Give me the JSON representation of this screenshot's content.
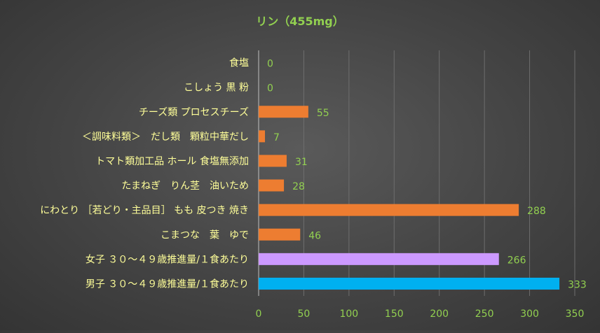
{
  "chart_data": {
    "type": "bar",
    "orientation": "horizontal",
    "title": "リン（455mg）",
    "categories": [
      "食塩",
      "こしょう 黒 粉",
      "チーズ類 プロセスチーズ",
      "＜調味料類＞　だし類　顆粒中華だし",
      "トマト類加工品 ホール 食塩無添加",
      "たまねぎ　りん茎　油いため",
      "にわとり ［若どり・主品目］ もも 皮つき 焼き",
      "こまつな　葉　ゆで",
      "女子 ３０～４９歳推進量/１食あたり",
      "男子 ３０～４９歳推進量/１食あたり"
    ],
    "values": [
      0,
      0,
      55,
      7,
      31,
      28,
      288,
      46,
      266,
      333
    ],
    "bar_colors": [
      "#ed7d31",
      "#ed7d31",
      "#ed7d31",
      "#ed7d31",
      "#ed7d31",
      "#ed7d31",
      "#ed7d31",
      "#ed7d31",
      "#cc99ff",
      "#00b0f0"
    ],
    "xlim": [
      0,
      350
    ],
    "xticks": [
      0,
      50,
      100,
      150,
      200,
      250,
      300,
      350
    ],
    "grid": true,
    "legend": "none",
    "colors": {
      "title": "#92d050",
      "category_label": "#ffff99",
      "value_label": "#92d050",
      "tick_label": "#92d050",
      "gridline": "#6e6e6e"
    }
  }
}
